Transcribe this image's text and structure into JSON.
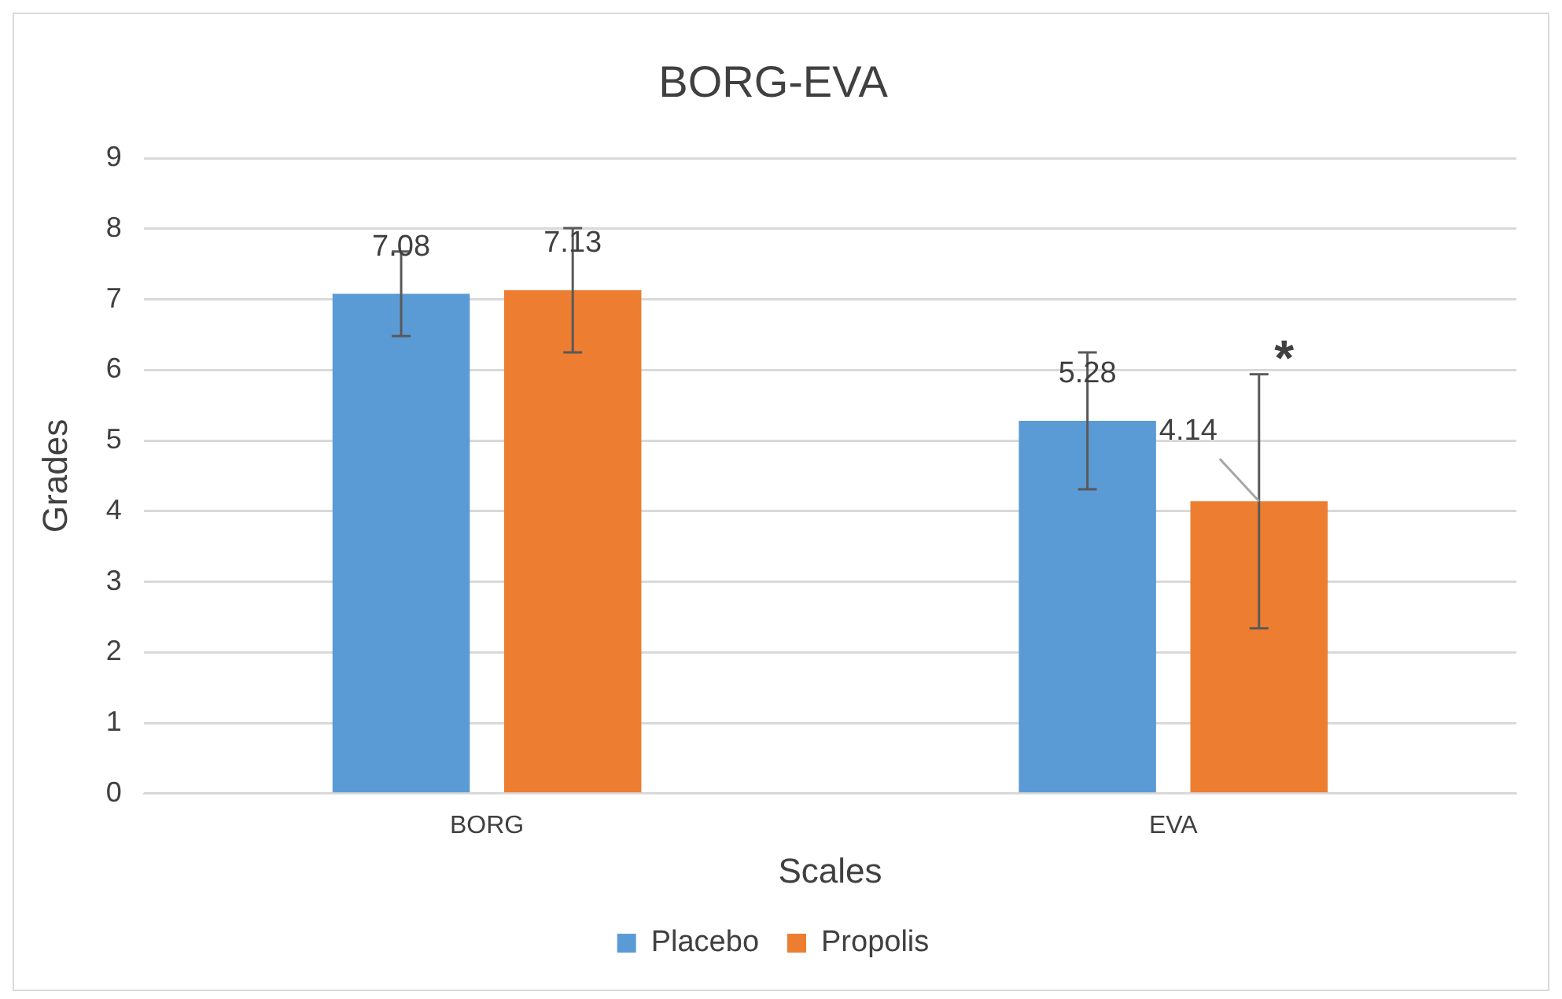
{
  "chart_data": {
    "type": "bar",
    "title": "BORG-EVA",
    "xlabel": "Scales",
    "ylabel": "Grades",
    "categories": [
      "BORG",
      "EVA"
    ],
    "series": [
      {
        "name": "Placebo",
        "color": "#5b9bd5",
        "values": [
          7.08,
          5.28
        ],
        "errors": [
          0.6,
          0.97
        ]
      },
      {
        "name": "Propolis",
        "color": "#ed7d31",
        "values": [
          7.13,
          4.14
        ],
        "errors": [
          0.88,
          1.8
        ]
      }
    ],
    "ylim": [
      0,
      9
    ],
    "yticks": [
      0,
      1,
      2,
      3,
      4,
      5,
      6,
      7,
      8,
      9
    ],
    "grid": "y",
    "legend": "bottom",
    "data_labels": true,
    "annotations": [
      "*"
    ]
  }
}
